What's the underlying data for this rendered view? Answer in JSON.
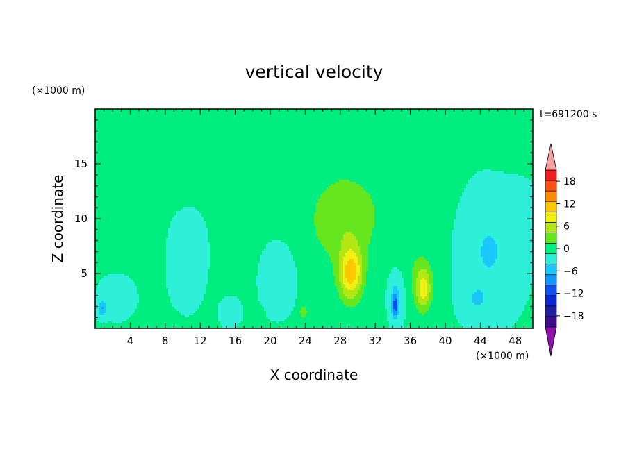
{
  "chart_data": {
    "type": "heatmap",
    "title": "vertical velocity",
    "xlabel": "X coordinate",
    "ylabel": "Z coordinate",
    "x_unit": "(×1000 m)",
    "y_unit": "(×1000 m)",
    "time_label": "t=691200 s",
    "xlim": [
      0,
      50
    ],
    "ylim": [
      0,
      20
    ],
    "x_ticks": [
      4,
      8,
      12,
      16,
      20,
      24,
      28,
      32,
      36,
      40,
      44,
      48
    ],
    "y_ticks": [
      5,
      10,
      15
    ],
    "colorbar": {
      "levels": [
        -21,
        -18,
        -15,
        -12,
        -9,
        -6,
        -3,
        0,
        3,
        6,
        9,
        12,
        15,
        18,
        21
      ],
      "tick_labels": [
        "18",
        "12",
        "6",
        "0",
        "−6",
        "−12",
        "−18"
      ],
      "tick_values": [
        18,
        12,
        6,
        0,
        -6,
        -12,
        -18
      ],
      "colors": [
        "#3b0b8c",
        "#1e1ea0",
        "#0a28d2",
        "#1050f0",
        "#1496ff",
        "#19c8ff",
        "#2ef0d8",
        "#00ee80",
        "#66e61e",
        "#b4e614",
        "#f0f014",
        "#ffc800",
        "#ff8c00",
        "#ff5014",
        "#f01e1e"
      ],
      "over_color": "#f4a3a3",
      "under_color": "#8c14aa"
    },
    "features": [
      {
        "x": 29.2,
        "z": 5.0,
        "peak": 12.5,
        "sx": 1.3,
        "sz": 2.4
      },
      {
        "x": 28.5,
        "z": 9.5,
        "peak": 3.5,
        "sx": 3.4,
        "sz": 3.5
      },
      {
        "x": 37.5,
        "z": 3.6,
        "peak": 9.0,
        "sx": 0.9,
        "sz": 2.0
      },
      {
        "x": 36.5,
        "z": 5.0,
        "peak": 2.0,
        "sx": 2.4,
        "sz": 3.2
      },
      {
        "x": 23.8,
        "z": 1.5,
        "peak": 5.0,
        "sx": 0.45,
        "sz": 0.6
      },
      {
        "x": 18.8,
        "z": 1.2,
        "peak": 3.0,
        "sx": 0.35,
        "sz": 0.5
      },
      {
        "x": 34.3,
        "z": 2.1,
        "peak": -9.5,
        "sx": 0.35,
        "sz": 1.2
      },
      {
        "x": 34.5,
        "z": 3.5,
        "peak": -3.5,
        "sx": 1.1,
        "sz": 2.5
      },
      {
        "x": 21.0,
        "z": 5.0,
        "peak": -3.0,
        "sx": 2.0,
        "sz": 3.0
      },
      {
        "x": 10.5,
        "z": 7.0,
        "peak": -3.0,
        "sx": 1.7,
        "sz": 3.5
      },
      {
        "x": 45.0,
        "z": 7.0,
        "peak": -3.5,
        "sx": 3.0,
        "sz": 4.5
      },
      {
        "x": 48.5,
        "z": 10.5,
        "peak": -2.0,
        "sx": 1.5,
        "sz": 2.0
      },
      {
        "x": 2.5,
        "z": 3.0,
        "peak": -2.5,
        "sx": 1.5,
        "sz": 1.5
      },
      {
        "x": 0.8,
        "z": 1.8,
        "peak": -6.0,
        "sx": 0.5,
        "sz": 0.7
      },
      {
        "x": 15.5,
        "z": 1.5,
        "peak": -2.5,
        "sx": 1.0,
        "sz": 1.0
      },
      {
        "x": 43.5,
        "z": 2.5,
        "peak": -2.5,
        "sx": 1.5,
        "sz": 1.5
      }
    ],
    "background": [
      {
        "x": 7.5,
        "z": 14.0,
        "peak": 1.8,
        "sx": 5.5,
        "sz": 3.0
      },
      {
        "x": 29.0,
        "z": 13.5,
        "peak": 1.4,
        "sx": 7.5,
        "sz": 4.5
      },
      {
        "x": 27.0,
        "z": 8.0,
        "peak": 1.2,
        "sx": 10.0,
        "sz": 6.0
      },
      {
        "x": 47.0,
        "z": 16.0,
        "peak": 1.2,
        "sx": 2.5,
        "sz": 1.0
      },
      {
        "x": 4.0,
        "z": 8.0,
        "peak": 0.6,
        "sx": 4.0,
        "sz": 3.0
      },
      {
        "x": 36.0,
        "z": 11.0,
        "peak": 0.8,
        "sx": 3.0,
        "sz": 3.0
      }
    ]
  }
}
